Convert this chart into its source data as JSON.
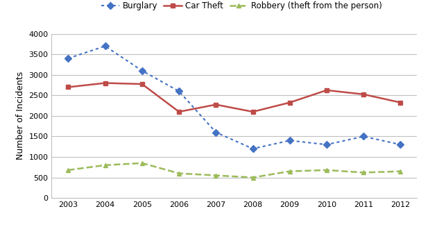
{
  "years": [
    2003,
    2004,
    2005,
    2006,
    2007,
    2008,
    2009,
    2010,
    2011,
    2012
  ],
  "burglary": [
    3400,
    3700,
    3100,
    2600,
    1600,
    1200,
    1400,
    1300,
    1500,
    1300
  ],
  "car_theft": [
    2700,
    2800,
    2775,
    2100,
    2275,
    2100,
    2325,
    2625,
    2525,
    2325
  ],
  "robbery": [
    680,
    800,
    850,
    600,
    550,
    500,
    650,
    680,
    620,
    650
  ],
  "burglary_color": "#4472C4",
  "car_theft_color": "#BE4B48",
  "robbery_color": "#9BBB59",
  "ylabel": "Number of Incidents",
  "ylim": [
    0,
    4000
  ],
  "yticks": [
    0,
    500,
    1000,
    1500,
    2000,
    2500,
    3000,
    3500,
    4000
  ],
  "legend_labels": [
    "Burglary",
    "Car Theft",
    "Robbery (theft from the person)"
  ],
  "background_color": "#ffffff",
  "grid_color": "#c0c0c0",
  "spine_color": "#c0c0c0",
  "tick_fontsize": 8,
  "ylabel_fontsize": 9,
  "legend_fontsize": 8.5
}
